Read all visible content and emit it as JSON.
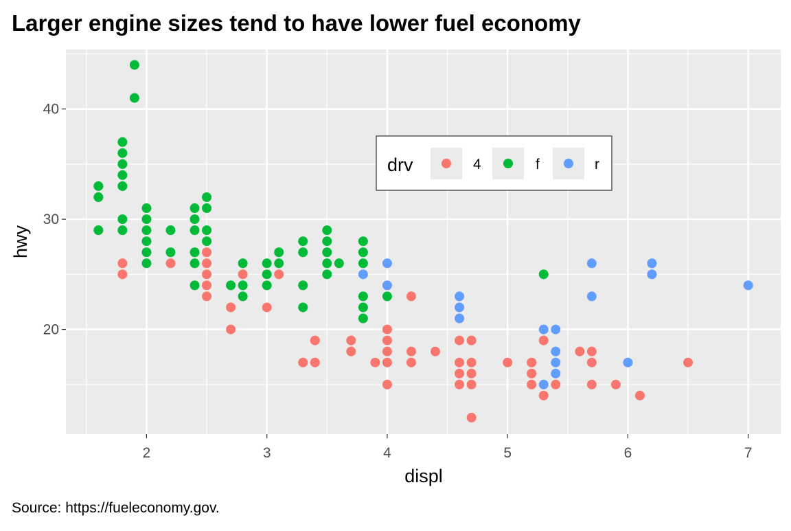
{
  "chart_data": {
    "type": "scatter",
    "title": "Larger engine sizes tend to have lower fuel economy",
    "caption": "Source: https://fueleconomy.gov.",
    "xlabel": "displ",
    "ylabel": "hwy",
    "xlim": [
      1.33,
      7.27
    ],
    "ylim": [
      10.5,
      45.4
    ],
    "x_ticks": [
      2,
      3,
      4,
      5,
      6,
      7
    ],
    "y_ticks": [
      20,
      30,
      40
    ],
    "x_tick_labels": [
      "2",
      "3",
      "4",
      "5",
      "6",
      "7"
    ],
    "y_tick_labels": [
      "20",
      "30",
      "40"
    ],
    "grid": true,
    "panel_background": "#EBEBEB",
    "legend": {
      "title": "drv",
      "placement": "inside-top-center",
      "entries": [
        {
          "label": "4",
          "color": "#F8766D"
        },
        {
          "label": "f",
          "color": "#00BA38"
        },
        {
          "label": "r",
          "color": "#619CFF"
        }
      ]
    },
    "points": [
      [
        1.6,
        33,
        "f"
      ],
      [
        1.6,
        32,
        "f"
      ],
      [
        1.6,
        29,
        "f"
      ],
      [
        1.8,
        37,
        "f"
      ],
      [
        1.8,
        36,
        "f"
      ],
      [
        1.8,
        35,
        "f"
      ],
      [
        1.8,
        34,
        "f"
      ],
      [
        1.8,
        33,
        "f"
      ],
      [
        1.8,
        30,
        "f"
      ],
      [
        1.8,
        29,
        "f"
      ],
      [
        1.8,
        26,
        "4"
      ],
      [
        1.8,
        25,
        "4"
      ],
      [
        1.9,
        44,
        "f"
      ],
      [
        1.9,
        41,
        "f"
      ],
      [
        2.0,
        31,
        "f"
      ],
      [
        2.0,
        30,
        "f"
      ],
      [
        2.0,
        29,
        "f"
      ],
      [
        2.0,
        28,
        "f"
      ],
      [
        2.0,
        27,
        "f"
      ],
      [
        2.0,
        26,
        "f"
      ],
      [
        2.2,
        29,
        "f"
      ],
      [
        2.2,
        27,
        "f"
      ],
      [
        2.2,
        26,
        "4"
      ],
      [
        2.4,
        31,
        "f"
      ],
      [
        2.4,
        30,
        "f"
      ],
      [
        2.4,
        29,
        "f"
      ],
      [
        2.4,
        27,
        "f"
      ],
      [
        2.4,
        26,
        "f"
      ],
      [
        2.4,
        24,
        "f"
      ],
      [
        2.5,
        32,
        "f"
      ],
      [
        2.5,
        31,
        "f"
      ],
      [
        2.5,
        29,
        "f"
      ],
      [
        2.5,
        28,
        "f"
      ],
      [
        2.5,
        27,
        "4"
      ],
      [
        2.5,
        26,
        "4"
      ],
      [
        2.5,
        25,
        "4"
      ],
      [
        2.5,
        24,
        "4"
      ],
      [
        2.5,
        23,
        "4"
      ],
      [
        2.7,
        24,
        "f"
      ],
      [
        2.7,
        22,
        "4"
      ],
      [
        2.7,
        20,
        "4"
      ],
      [
        2.8,
        26,
        "f"
      ],
      [
        2.8,
        25,
        "4"
      ],
      [
        2.8,
        24,
        "f"
      ],
      [
        2.8,
        23,
        "f"
      ],
      [
        3.0,
        26,
        "f"
      ],
      [
        3.0,
        25,
        "f"
      ],
      [
        3.0,
        24,
        "f"
      ],
      [
        3.0,
        22,
        "4"
      ],
      [
        3.1,
        27,
        "f"
      ],
      [
        3.1,
        26,
        "f"
      ],
      [
        3.1,
        25,
        "4"
      ],
      [
        3.3,
        28,
        "f"
      ],
      [
        3.3,
        27,
        "f"
      ],
      [
        3.3,
        24,
        "f"
      ],
      [
        3.3,
        22,
        "f"
      ],
      [
        3.3,
        17,
        "4"
      ],
      [
        3.4,
        19,
        "4"
      ],
      [
        3.4,
        17,
        "4"
      ],
      [
        3.5,
        29,
        "f"
      ],
      [
        3.5,
        28,
        "f"
      ],
      [
        3.5,
        27,
        "f"
      ],
      [
        3.5,
        26,
        "f"
      ],
      [
        3.5,
        25,
        "f"
      ],
      [
        3.6,
        26,
        "f"
      ],
      [
        3.7,
        19,
        "4"
      ],
      [
        3.7,
        18,
        "4"
      ],
      [
        3.8,
        28,
        "f"
      ],
      [
        3.8,
        27,
        "f"
      ],
      [
        3.8,
        26,
        "f"
      ],
      [
        3.8,
        25,
        "r"
      ],
      [
        3.8,
        23,
        "f"
      ],
      [
        3.8,
        22,
        "f"
      ],
      [
        3.8,
        21,
        "f"
      ],
      [
        3.9,
        17,
        "4"
      ],
      [
        4.0,
        26,
        "r"
      ],
      [
        4.0,
        24,
        "r"
      ],
      [
        4.0,
        23,
        "f"
      ],
      [
        4.0,
        20,
        "4"
      ],
      [
        4.0,
        19,
        "4"
      ],
      [
        4.0,
        18,
        "4"
      ],
      [
        4.0,
        17,
        "4"
      ],
      [
        4.0,
        15,
        "4"
      ],
      [
        4.2,
        23,
        "4"
      ],
      [
        4.2,
        18,
        "4"
      ],
      [
        4.2,
        17,
        "4"
      ],
      [
        4.4,
        18,
        "4"
      ],
      [
        4.6,
        23,
        "r"
      ],
      [
        4.6,
        22,
        "r"
      ],
      [
        4.6,
        21,
        "r"
      ],
      [
        4.6,
        19,
        "4"
      ],
      [
        4.6,
        17,
        "4"
      ],
      [
        4.6,
        16,
        "4"
      ],
      [
        4.6,
        15,
        "4"
      ],
      [
        4.7,
        19,
        "4"
      ],
      [
        4.7,
        17,
        "4"
      ],
      [
        4.7,
        16,
        "4"
      ],
      [
        4.7,
        15,
        "4"
      ],
      [
        4.7,
        12,
        "4"
      ],
      [
        5.0,
        17,
        "4"
      ],
      [
        5.2,
        17,
        "4"
      ],
      [
        5.2,
        16,
        "4"
      ],
      [
        5.2,
        15,
        "4"
      ],
      [
        5.3,
        25,
        "f"
      ],
      [
        5.3,
        20,
        "r"
      ],
      [
        5.3,
        19,
        "4"
      ],
      [
        5.3,
        15,
        "r"
      ],
      [
        5.3,
        14,
        "4"
      ],
      [
        5.4,
        20,
        "r"
      ],
      [
        5.4,
        18,
        "r"
      ],
      [
        5.4,
        17,
        "r"
      ],
      [
        5.4,
        16,
        "r"
      ],
      [
        5.4,
        15,
        "4"
      ],
      [
        5.6,
        18,
        "4"
      ],
      [
        5.7,
        26,
        "r"
      ],
      [
        5.7,
        23,
        "r"
      ],
      [
        5.7,
        18,
        "4"
      ],
      [
        5.7,
        17,
        "4"
      ],
      [
        5.7,
        15,
        "4"
      ],
      [
        5.9,
        15,
        "4"
      ],
      [
        6.0,
        17,
        "r"
      ],
      [
        6.1,
        14,
        "4"
      ],
      [
        6.2,
        26,
        "r"
      ],
      [
        6.2,
        25,
        "r"
      ],
      [
        6.5,
        17,
        "4"
      ],
      [
        7.0,
        24,
        "r"
      ]
    ]
  }
}
